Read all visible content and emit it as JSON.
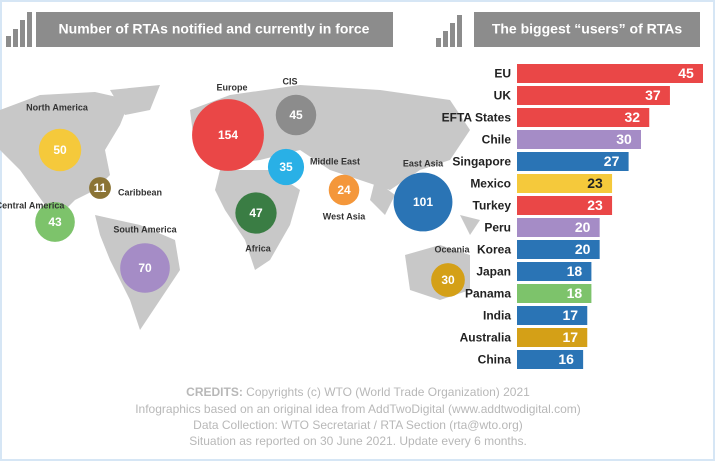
{
  "chart_data": [
    {
      "type": "bubble",
      "title": "Number of RTAs notified and currently in force",
      "categories": [
        "North America",
        "Caribbean",
        "Central America",
        "South America",
        "Europe",
        "CIS",
        "Middle East",
        "West Asia",
        "Africa",
        "East Asia",
        "Oceania"
      ],
      "values": [
        50,
        11,
        43,
        70,
        154,
        45,
        35,
        24,
        47,
        101,
        30
      ],
      "colors": [
        "#f5c93b",
        "#8b7435",
        "#7dc36b",
        "#a58cc6",
        "#ea4747",
        "#8c8c8c",
        "#29b0e6",
        "#f4973b",
        "#3a7d44",
        "#2a74b5",
        "#d4a017"
      ]
    },
    {
      "type": "hbar",
      "title": "The biggest “users” of RTAs",
      "categories": [
        "EU",
        "UK",
        "EFTA States",
        "Chile",
        "Singapore",
        "Mexico",
        "Turkey",
        "Peru",
        "Korea",
        "Japan",
        "Panama",
        "India",
        "Australia",
        "China"
      ],
      "values": [
        45,
        37,
        32,
        30,
        27,
        23,
        23,
        20,
        20,
        18,
        18,
        17,
        17,
        16
      ],
      "colors": [
        "#ea4747",
        "#ea4747",
        "#ea4747",
        "#a58cc6",
        "#2a74b5",
        "#f5c93b",
        "#ea4747",
        "#a58cc6",
        "#2a74b5",
        "#2a74b5",
        "#7dc36b",
        "#2a74b5",
        "#d4a017",
        "#2a74b5"
      ]
    }
  ],
  "credits": {
    "label": "CREDITS:",
    "lines": [
      "Copyrights (c) WTO (World Trade Organization) 2021",
      "Infographics based on an original idea from AddTwoDigital (www.addtwodigital.com)",
      "Data Collection: WTO Secretariat / RTA Section (rta@wto.org)",
      "Situation as reported on 30 June 2021. Update every 6 months."
    ]
  }
}
